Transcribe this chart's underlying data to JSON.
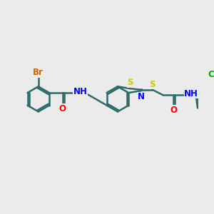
{
  "bg_color": "#ebebeb",
  "bond_color": "#2d6b6b",
  "bond_width": 1.8,
  "atom_colors": {
    "Br": "#cc6600",
    "N": "#0000ff",
    "O": "#ff0000",
    "S": "#cccc00",
    "Cl": "#00aa00",
    "H": "#555555",
    "C": "#2d6b6b"
  },
  "figsize": [
    3.0,
    3.0
  ],
  "dpi": 100
}
